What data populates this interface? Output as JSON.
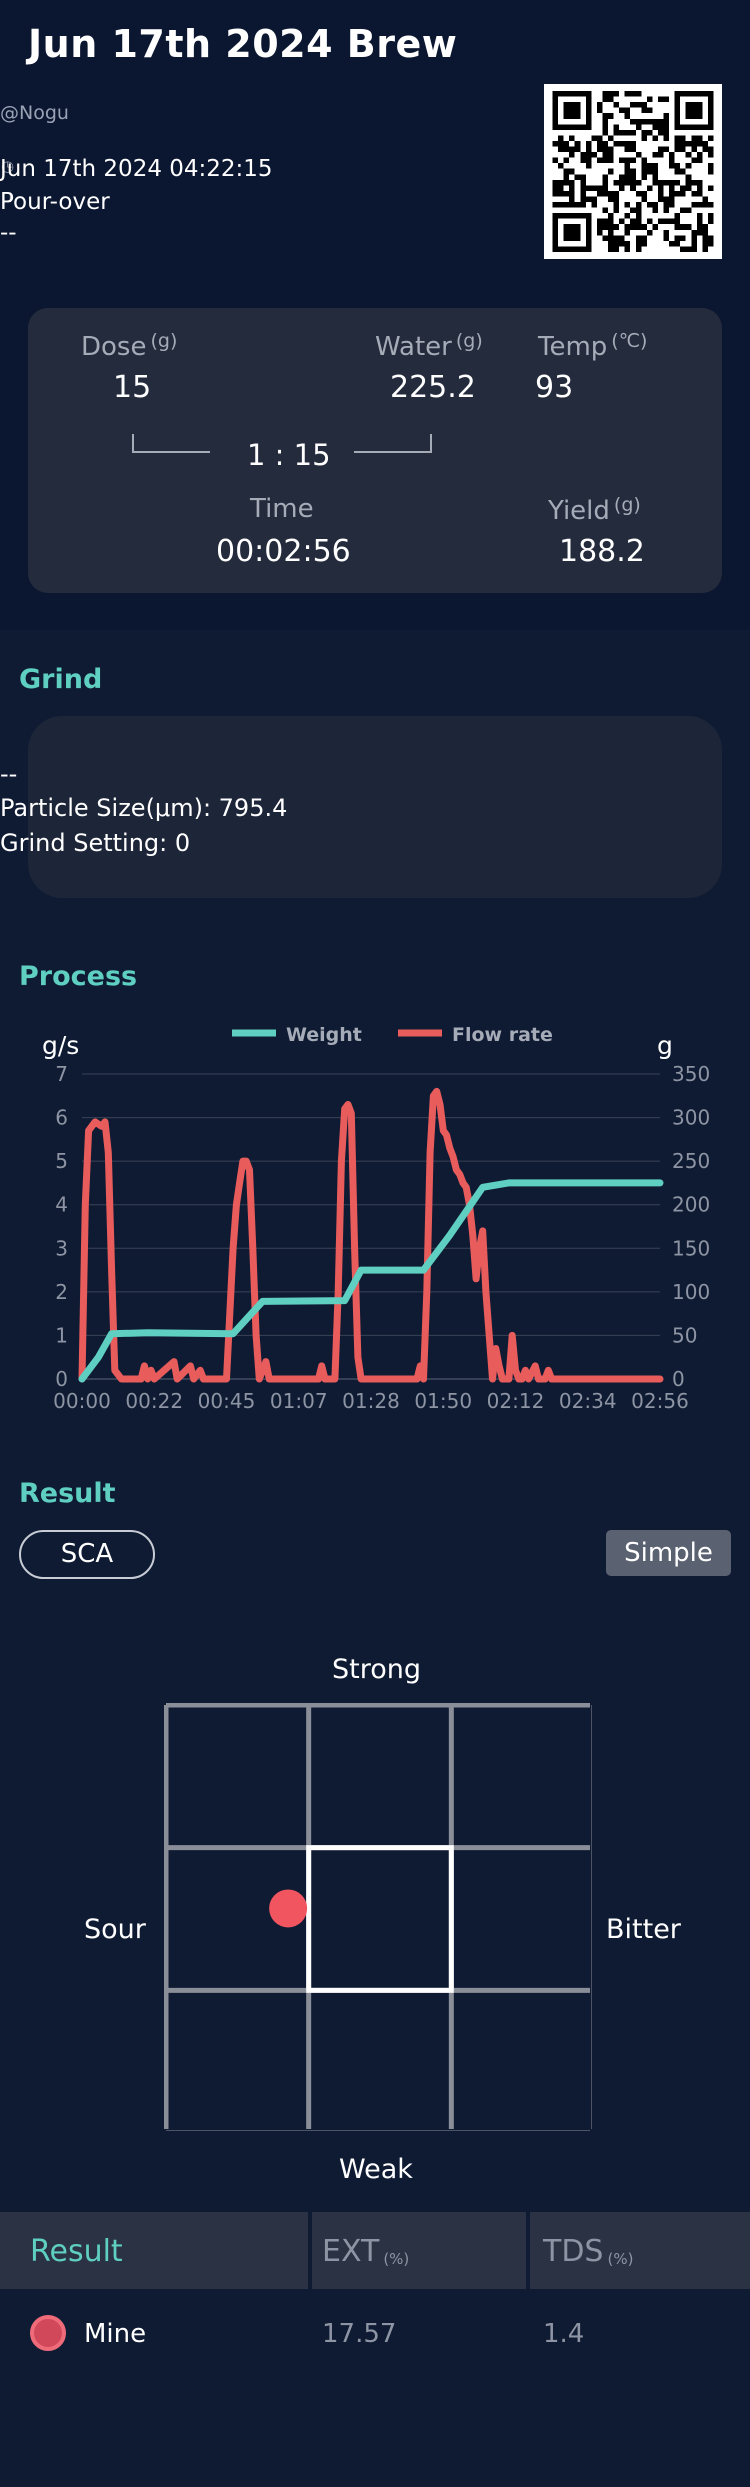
{
  "header": {
    "title": "Jun 17th 2024 Brew",
    "user": "@Nogu",
    "datetime": "Jun 17th 2024 04:22:15",
    "method": "Pour-over",
    "bean": "--",
    "qr_icon": "qr-code"
  },
  "summary": {
    "dose_label": "Dose",
    "dose_unit": "(g)",
    "dose_value": "15",
    "water_label": "Water",
    "water_unit": "(g)",
    "water_value": "225.2",
    "temp_label": "Temp",
    "temp_unit": "(℃)",
    "temp_value": "93",
    "ratio": "1 : 15",
    "time_label": "Time",
    "time_value": "00:02:56",
    "yield_label": "Yield",
    "yield_unit": "(g)",
    "yield_value": "188.2"
  },
  "grind": {
    "section_title": "Grind",
    "grinder": "--",
    "particle_size": "Particle Size(μm): 795.4",
    "grind_setting": "Grind Setting: 0"
  },
  "process": {
    "section_title": "Process"
  },
  "chart_data": {
    "type": "line",
    "y_left_label": "g/s",
    "y_right_label": "g",
    "ylim_left": [
      0,
      7
    ],
    "ylim_right": [
      0,
      350
    ],
    "left_ticks": [
      "0",
      "1",
      "2",
      "3",
      "4",
      "5",
      "6",
      "7"
    ],
    "right_ticks": [
      "0",
      "50",
      "100",
      "150",
      "200",
      "250",
      "300",
      "350"
    ],
    "x_ticks": [
      "00:00",
      "00:22",
      "00:45",
      "01:07",
      "01:28",
      "01:50",
      "02:12",
      "02:34",
      "02:56"
    ],
    "xlim_seconds": [
      0,
      176
    ],
    "grid": true,
    "legend_position": "top",
    "series": [
      {
        "name": "Weight",
        "color": "#5ecfc0",
        "axis": "right",
        "points": [
          [
            0,
            0
          ],
          [
            5,
            25
          ],
          [
            9,
            52
          ],
          [
            20,
            53
          ],
          [
            46,
            52
          ],
          [
            55,
            89
          ],
          [
            80,
            90
          ],
          [
            85,
            125
          ],
          [
            104,
            125
          ],
          [
            112,
            165
          ],
          [
            122,
            220
          ],
          [
            130,
            225
          ],
          [
            150,
            225
          ],
          [
            176,
            225
          ]
        ]
      },
      {
        "name": "Flow rate",
        "color": "#e95c5c",
        "axis": "left",
        "points": [
          [
            0,
            0
          ],
          [
            1,
            4
          ],
          [
            2,
            5.7
          ],
          [
            4,
            5.9
          ],
          [
            6,
            5.8
          ],
          [
            7,
            5.9
          ],
          [
            8,
            5.2
          ],
          [
            9,
            2.5
          ],
          [
            10,
            0.2
          ],
          [
            12,
            0
          ],
          [
            18,
            0
          ],
          [
            19,
            0.3
          ],
          [
            20,
            0
          ],
          [
            21,
            0.2
          ],
          [
            22,
            0
          ],
          [
            28,
            0.4
          ],
          [
            29,
            0
          ],
          [
            33,
            0.3
          ],
          [
            34,
            0
          ],
          [
            36,
            0.2
          ],
          [
            37,
            0
          ],
          [
            44,
            0
          ],
          [
            45,
            1.5
          ],
          [
            46,
            3
          ],
          [
            47,
            4
          ],
          [
            48,
            4.5
          ],
          [
            49,
            5
          ],
          [
            50,
            5
          ],
          [
            51,
            4.8
          ],
          [
            52,
            3
          ],
          [
            53,
            1
          ],
          [
            54,
            0
          ],
          [
            56,
            0.4
          ],
          [
            57,
            0
          ],
          [
            62,
            0
          ],
          [
            72,
            0
          ],
          [
            73,
            0.3
          ],
          [
            74,
            0
          ],
          [
            77,
            0
          ],
          [
            78,
            2
          ],
          [
            79,
            5
          ],
          [
            80,
            6.2
          ],
          [
            81,
            6.3
          ],
          [
            82,
            6.1
          ],
          [
            83,
            3
          ],
          [
            84,
            0.5
          ],
          [
            85,
            0
          ],
          [
            102,
            0
          ],
          [
            103,
            0.3
          ],
          [
            104,
            0
          ],
          [
            105,
            2
          ],
          [
            106,
            5.2
          ],
          [
            107,
            6.5
          ],
          [
            108,
            6.6
          ],
          [
            109,
            6.3
          ],
          [
            110,
            5.7
          ],
          [
            111,
            5.6
          ],
          [
            112,
            5.3
          ],
          [
            113,
            5.1
          ],
          [
            114,
            4.8
          ],
          [
            115,
            4.7
          ],
          [
            116,
            4.5
          ],
          [
            117,
            4.4
          ],
          [
            118,
            4
          ],
          [
            119,
            3.3
          ],
          [
            120,
            2.3
          ],
          [
            121,
            3
          ],
          [
            122,
            3.4
          ],
          [
            123,
            2
          ],
          [
            124,
            1
          ],
          [
            125,
            0
          ],
          [
            126,
            0.7
          ],
          [
            127,
            0.3
          ],
          [
            128,
            0
          ],
          [
            130,
            0
          ],
          [
            131,
            1
          ],
          [
            132,
            0.2
          ],
          [
            133,
            0
          ],
          [
            134,
            0
          ],
          [
            135,
            0.2
          ],
          [
            136,
            0
          ],
          [
            138,
            0.3
          ],
          [
            139,
            0
          ],
          [
            141,
            0
          ],
          [
            142,
            0.2
          ],
          [
            143,
            0
          ],
          [
            176,
            0
          ]
        ]
      }
    ]
  },
  "result": {
    "section_title": "Result",
    "sca_label": "SCA",
    "simple_label": "Simple",
    "strong": "Strong",
    "weak": "Weak",
    "sour": "Sour",
    "bitter": "Bitter",
    "taste_point": {
      "strength": 0.48,
      "acidity": 0.29
    }
  },
  "result_table": {
    "col_result": "Result",
    "col_ext": "EXT",
    "col_ext_unit": "(%)",
    "col_tds": "TDS",
    "col_tds_unit": "(%)",
    "rows": [
      {
        "name": "Mine",
        "ext": "17.57",
        "tds": "1.4",
        "color": "#d0485a"
      }
    ]
  },
  "colors": {
    "accent": "#5ecfc0",
    "flow": "#e95c5c",
    "background": "#0f1b33"
  }
}
